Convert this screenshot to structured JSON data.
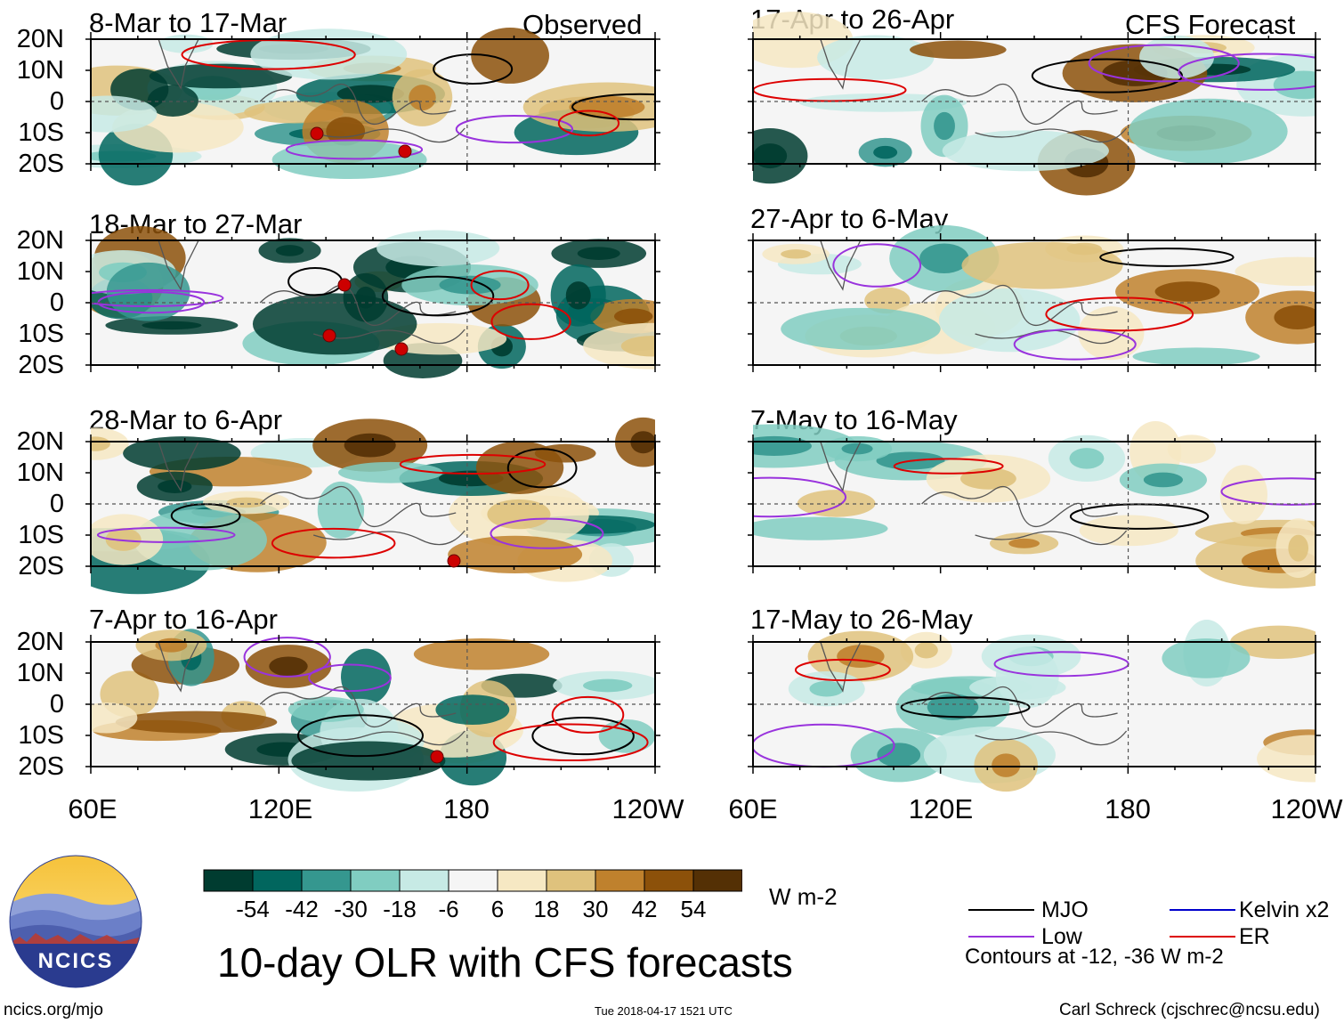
{
  "figure": {
    "main_title": "10-day OLR with CFS forecasts",
    "website": "ncics.org/mjo",
    "timestamp": "Tue 2018-04-17 1521 UTC",
    "author": "Carl Schreck (cjschrec@ncsu.edu)",
    "logo_text": "NCICS"
  },
  "axes": {
    "lat_labels": [
      "20N",
      "10N",
      "0",
      "10S",
      "20S"
    ],
    "lon_labels_left": [
      "60E",
      "120E",
      "180",
      "120W"
    ],
    "lon_labels_right": [
      "60E",
      "120E",
      "180",
      "120W"
    ]
  },
  "columns": {
    "observed_label": "Observed",
    "forecast_label": "CFS Forecast"
  },
  "panels_observed": [
    {
      "title": "8-Mar to 17-Mar"
    },
    {
      "title": "18-Mar to 27-Mar"
    },
    {
      "title": "28-Mar to 6-Apr"
    },
    {
      "title": "7-Apr to 16-Apr"
    }
  ],
  "panels_forecast": [
    {
      "title": "17-Apr to 26-Apr"
    },
    {
      "title": "27-Apr to 6-May"
    },
    {
      "title": "7-May to 16-May"
    },
    {
      "title": "17-May to 26-May"
    }
  ],
  "colorbar": {
    "units": "W m-2",
    "tick_labels": [
      "-54",
      "-42",
      "-30",
      "-18",
      "-6",
      "6",
      "18",
      "30",
      "42",
      "54"
    ],
    "colors": [
      "#003c30",
      "#01665e",
      "#35978f",
      "#80cdc1",
      "#c7eae5",
      "#f5f5f5",
      "#f6e8c3",
      "#dfc27d",
      "#bf812d",
      "#8c510a",
      "#543005"
    ]
  },
  "legend": {
    "items": [
      {
        "label": "MJO",
        "color": "#000000"
      },
      {
        "label": "Kelvin x2",
        "color": "#0000cc"
      },
      {
        "label": "Low",
        "color": "#9933dd"
      },
      {
        "label": "ER",
        "color": "#dd0000"
      }
    ],
    "note": "Contours at -12, -36 W m-2"
  }
}
